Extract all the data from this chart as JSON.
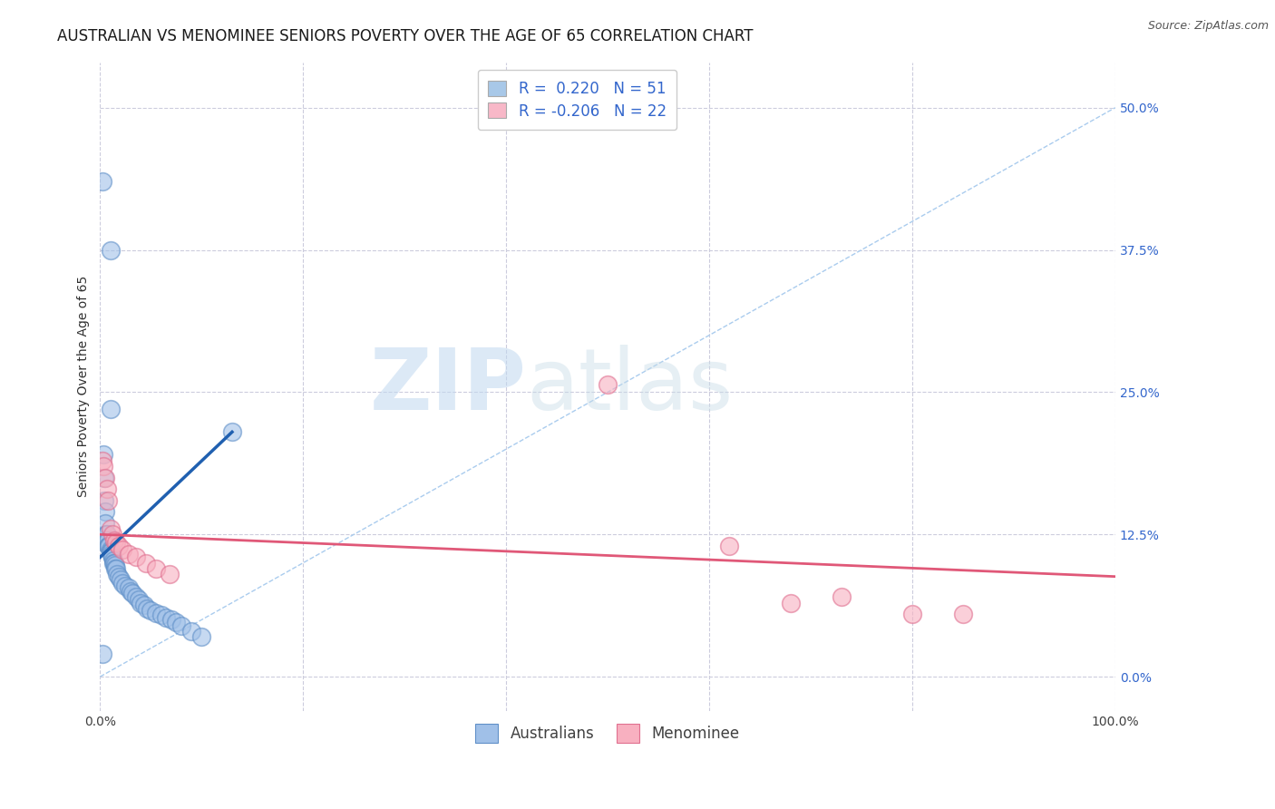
{
  "title": "AUSTRALIAN VS MENOMINEE SENIORS POVERTY OVER THE AGE OF 65 CORRELATION CHART",
  "source": "Source: ZipAtlas.com",
  "ylabel": "Seniors Poverty Over the Age of 65",
  "xlim": [
    0.0,
    1.0
  ],
  "ylim": [
    -0.03,
    0.54
  ],
  "yticks": [
    0.0,
    0.125,
    0.25,
    0.375,
    0.5
  ],
  "ytick_labels": [
    "0.0%",
    "12.5%",
    "25.0%",
    "37.5%",
    "50.0%"
  ],
  "xticks": [
    0.0,
    0.2,
    0.4,
    0.6,
    0.8,
    1.0
  ],
  "xtick_labels": [
    "0.0%",
    "",
    "",
    "",
    "",
    "100.0%"
  ],
  "legend_entries": [
    {
      "label_r": "R =  0.220",
      "label_n": "N = 51",
      "color": "#a8c8e8"
    },
    {
      "label_r": "R = -0.206",
      "label_n": "N = 22",
      "color": "#f8b8c8"
    }
  ],
  "diagonal_line": {
    "x": [
      0.0,
      1.0
    ],
    "y": [
      0.0,
      0.5
    ],
    "color": "#aaccee",
    "linestyle": "dashed"
  },
  "australian_trend": {
    "x": [
      0.0,
      0.13
    ],
    "y": [
      0.105,
      0.215
    ],
    "color": "#2060b0"
  },
  "menominee_trend": {
    "x": [
      0.0,
      1.0
    ],
    "y": [
      0.125,
      0.088
    ],
    "color": "#e05878"
  },
  "watermark_zip": "ZIP",
  "watermark_atlas": "atlas",
  "australian_color_fill": "#a0c0e8",
  "australian_color_edge": "#6090c8",
  "menominee_color_fill": "#f8b0c0",
  "menominee_color_edge": "#e07090",
  "australian_points": [
    [
      0.002,
      0.435
    ],
    [
      0.01,
      0.375
    ],
    [
      0.01,
      0.235
    ],
    [
      0.003,
      0.195
    ],
    [
      0.004,
      0.175
    ],
    [
      0.004,
      0.155
    ],
    [
      0.005,
      0.145
    ],
    [
      0.005,
      0.135
    ],
    [
      0.006,
      0.125
    ],
    [
      0.007,
      0.125
    ],
    [
      0.007,
      0.12
    ],
    [
      0.008,
      0.12
    ],
    [
      0.008,
      0.115
    ],
    [
      0.009,
      0.115
    ],
    [
      0.009,
      0.115
    ],
    [
      0.01,
      0.112
    ],
    [
      0.01,
      0.11
    ],
    [
      0.011,
      0.11
    ],
    [
      0.011,
      0.108
    ],
    [
      0.012,
      0.105
    ],
    [
      0.012,
      0.105
    ],
    [
      0.013,
      0.102
    ],
    [
      0.013,
      0.1
    ],
    [
      0.014,
      0.1
    ],
    [
      0.015,
      0.098
    ],
    [
      0.015,
      0.095
    ],
    [
      0.016,
      0.095
    ],
    [
      0.017,
      0.09
    ],
    [
      0.018,
      0.088
    ],
    [
      0.02,
      0.085
    ],
    [
      0.022,
      0.082
    ],
    [
      0.025,
      0.08
    ],
    [
      0.028,
      0.078
    ],
    [
      0.03,
      0.075
    ],
    [
      0.032,
      0.073
    ],
    [
      0.035,
      0.07
    ],
    [
      0.038,
      0.068
    ],
    [
      0.04,
      0.065
    ],
    [
      0.043,
      0.063
    ],
    [
      0.046,
      0.06
    ],
    [
      0.05,
      0.058
    ],
    [
      0.055,
      0.056
    ],
    [
      0.06,
      0.054
    ],
    [
      0.065,
      0.052
    ],
    [
      0.07,
      0.05
    ],
    [
      0.075,
      0.048
    ],
    [
      0.08,
      0.045
    ],
    [
      0.09,
      0.04
    ],
    [
      0.1,
      0.035
    ],
    [
      0.002,
      0.02
    ],
    [
      0.13,
      0.215
    ]
  ],
  "menominee_points": [
    [
      0.002,
      0.19
    ],
    [
      0.003,
      0.185
    ],
    [
      0.005,
      0.175
    ],
    [
      0.007,
      0.165
    ],
    [
      0.008,
      0.155
    ],
    [
      0.01,
      0.13
    ],
    [
      0.012,
      0.125
    ],
    [
      0.014,
      0.12
    ],
    [
      0.016,
      0.118
    ],
    [
      0.018,
      0.115
    ],
    [
      0.022,
      0.112
    ],
    [
      0.028,
      0.108
    ],
    [
      0.035,
      0.105
    ],
    [
      0.045,
      0.1
    ],
    [
      0.055,
      0.095
    ],
    [
      0.068,
      0.09
    ],
    [
      0.5,
      0.257
    ],
    [
      0.62,
      0.115
    ],
    [
      0.68,
      0.065
    ],
    [
      0.73,
      0.07
    ],
    [
      0.8,
      0.055
    ],
    [
      0.85,
      0.055
    ]
  ],
  "background_color": "#ffffff",
  "grid_color": "#ccccdd",
  "title_fontsize": 12,
  "axis_label_fontsize": 10,
  "tick_fontsize": 10,
  "source_fontsize": 9,
  "marker_size": 200,
  "legend_fontsize": 12
}
